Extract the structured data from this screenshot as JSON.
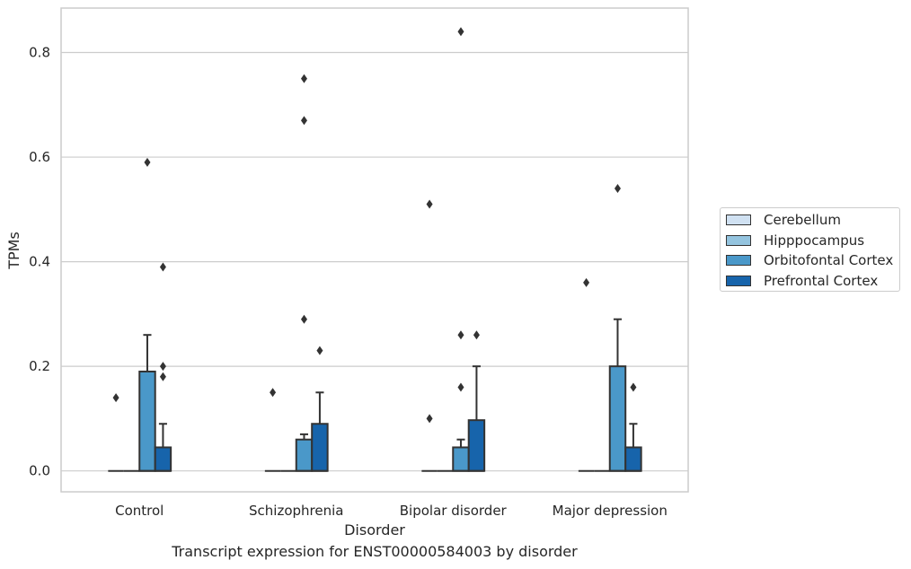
{
  "chart_data": {
    "type": "box",
    "xlabel": "Disorder",
    "ylabel": "TPMs",
    "caption": "Transcript expression for ENST00000584003 by disorder",
    "categories": [
      "Control",
      "Schizophrenia",
      "Bipolar disorder",
      "Major depression"
    ],
    "ylim": [
      -0.04,
      0.885
    ],
    "yticks": [
      0.0,
      0.2,
      0.4,
      0.6,
      0.8
    ],
    "ytick_labels": [
      "0.0",
      "0.2",
      "0.4",
      "0.6",
      "0.8"
    ],
    "grid": "horizontal",
    "legend_position": "right",
    "series": [
      {
        "name": "Cerebellum",
        "color": "#d0e1f2",
        "boxes": [
          {
            "q1": 0,
            "median": 0,
            "q3": 0,
            "whisker_low": 0,
            "whisker_high": 0,
            "outliers": [
              0.14
            ]
          },
          {
            "q1": 0,
            "median": 0,
            "q3": 0,
            "whisker_low": 0,
            "whisker_high": 0,
            "outliers": [
              0.15
            ]
          },
          {
            "q1": 0,
            "median": 0,
            "q3": 0,
            "whisker_low": 0,
            "whisker_high": 0,
            "outliers": [
              0.1,
              0.51
            ]
          },
          {
            "q1": 0,
            "median": 0,
            "q3": 0,
            "whisker_low": 0,
            "whisker_high": 0,
            "outliers": [
              0.36
            ]
          }
        ]
      },
      {
        "name": "Hipppocampus",
        "color": "#94c4df",
        "boxes": [
          {
            "q1": 0,
            "median": 0,
            "q3": 0,
            "whisker_low": 0,
            "whisker_high": 0,
            "outliers": []
          },
          {
            "q1": 0,
            "median": 0,
            "q3": 0,
            "whisker_low": 0,
            "whisker_high": 0,
            "outliers": []
          },
          {
            "q1": 0,
            "median": 0,
            "q3": 0,
            "whisker_low": 0,
            "whisker_high": 0,
            "outliers": []
          },
          {
            "q1": 0,
            "median": 0,
            "q3": 0,
            "whisker_low": 0,
            "whisker_high": 0,
            "outliers": []
          }
        ]
      },
      {
        "name": "Orbitofontal Cortex",
        "color": "#4a98c9",
        "boxes": [
          {
            "q1": 0,
            "median": 0,
            "q3": 0.19,
            "whisker_low": 0,
            "whisker_high": 0.26,
            "outliers": [
              0.59
            ]
          },
          {
            "q1": 0,
            "median": 0,
            "q3": 0.06,
            "whisker_low": 0,
            "whisker_high": 0.07,
            "outliers": [
              0.29,
              0.67,
              0.75
            ]
          },
          {
            "q1": 0,
            "median": 0,
            "q3": 0.045,
            "whisker_low": 0,
            "whisker_high": 0.06,
            "outliers": [
              0.16,
              0.26,
              0.84
            ]
          },
          {
            "q1": 0,
            "median": 0,
            "q3": 0.2,
            "whisker_low": 0,
            "whisker_high": 0.29,
            "outliers": [
              0.54
            ]
          }
        ]
      },
      {
        "name": "Prefrontal Cortex",
        "color": "#1764ab",
        "boxes": [
          {
            "q1": 0,
            "median": 0,
            "q3": 0.045,
            "whisker_low": 0,
            "whisker_high": 0.09,
            "outliers": [
              0.18,
              0.2,
              0.39
            ]
          },
          {
            "q1": 0,
            "median": 0,
            "q3": 0.09,
            "whisker_low": 0,
            "whisker_high": 0.15,
            "outliers": [
              0.23
            ]
          },
          {
            "q1": 0,
            "median": 0,
            "q3": 0.097,
            "whisker_low": 0,
            "whisker_high": 0.2,
            "outliers": [
              0.26
            ]
          },
          {
            "q1": 0,
            "median": 0,
            "q3": 0.045,
            "whisker_low": 0,
            "whisker_high": 0.09,
            "outliers": [
              0.16
            ]
          }
        ]
      }
    ]
  }
}
